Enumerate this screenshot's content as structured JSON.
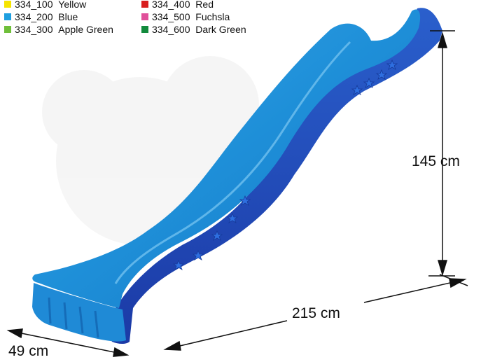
{
  "legend": {
    "items": [
      {
        "code": "334_100",
        "name": "Yellow",
        "color": "#f5e400"
      },
      {
        "code": "334_200",
        "name": "Blue",
        "color": "#1e9fe0"
      },
      {
        "code": "334_300",
        "name": "Apple Green",
        "color": "#6fbf3a"
      },
      {
        "code": "334_400",
        "name": "Red",
        "color": "#d81e1e"
      },
      {
        "code": "334_500",
        "name": "Fuchsla",
        "color": "#e0509a"
      },
      {
        "code": "334_600",
        "name": "Dark Green",
        "color": "#128a3c"
      }
    ]
  },
  "dimensions": {
    "height": "145 cm",
    "length": "215 cm",
    "width": "49 cm"
  },
  "product": {
    "color": "#1e8fd8",
    "shade_color": "#1d46b8",
    "decoration": "star-icon"
  }
}
